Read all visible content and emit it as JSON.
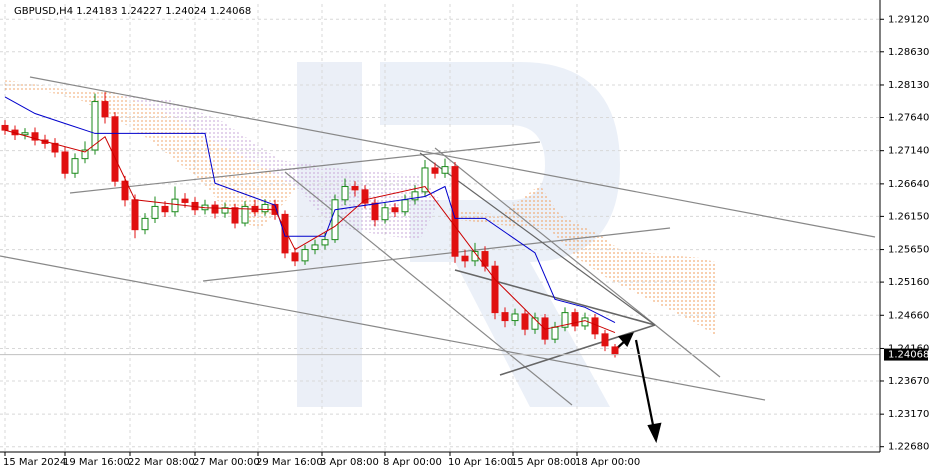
{
  "chart_data": {
    "type": "candlestick",
    "title": "GBPUSD,H4  1.24183 1.24227 1.24024 1.24068",
    "up_color": "#1a8a1a",
    "down_color": "#e01010",
    "grid": true,
    "xlim": [
      -0.5,
      87.5
    ],
    "ylim": [
      1.226,
      1.2935
    ],
    "xticks": [
      {
        "value": 0,
        "label": "15 Mar 2024"
      },
      {
        "value": 6,
        "label": "19 Mar 16:00"
      },
      {
        "value": 12.5,
        "label": "22 Mar 08:00"
      },
      {
        "value": 19,
        "label": "27 Mar 00:00"
      },
      {
        "value": 25.3,
        "label": "29 Mar 16:00"
      },
      {
        "value": 31.7,
        "label": "3 Apr 08:00"
      },
      {
        "value": 38,
        "label": "8 Apr 00:00"
      },
      {
        "value": 44.5,
        "label": "10 Apr 16:00"
      },
      {
        "value": 50.8,
        "label": "15 Apr 08:00"
      },
      {
        "value": 57.2,
        "label": "18 Apr 00:00"
      }
    ],
    "yticks": [
      {
        "value": 1.2912,
        "label": "1.29120"
      },
      {
        "value": 1.2863,
        "label": "1.28630"
      },
      {
        "value": 1.2813,
        "label": "1.28130"
      },
      {
        "value": 1.2764,
        "label": "1.27640"
      },
      {
        "value": 1.2714,
        "label": "1.27140"
      },
      {
        "value": 1.2664,
        "label": "1.26640"
      },
      {
        "value": 1.2615,
        "label": "1.26150"
      },
      {
        "value": 1.2565,
        "label": "1.25650"
      },
      {
        "value": 1.2516,
        "label": "1.25160"
      },
      {
        "value": 1.2466,
        "label": "1.24660"
      },
      {
        "value": 1.2416,
        "label": "1.24160"
      },
      {
        "value": 1.2367,
        "label": "1.23670"
      },
      {
        "value": 1.2317,
        "label": "1.23170"
      },
      {
        "value": 1.2268,
        "label": "1.22680"
      }
    ],
    "last_price": {
      "value": 1.24068,
      "label": "1.24068"
    },
    "open": [
      1.2752,
      1.2745,
      1.2738,
      1.2741,
      1.273,
      1.2725,
      1.2712,
      1.268,
      1.2702,
      1.2715,
      1.2788,
      1.2765,
      1.2668,
      1.264,
      1.2595,
      1.2612,
      1.263,
      1.2622,
      1.2641,
      1.2636,
      1.2625,
      1.2632,
      1.262,
      1.2628,
      1.2605,
      1.263,
      1.2622,
      1.2633,
      1.2618,
      1.256,
      1.2548,
      1.2565,
      1.2572,
      1.258,
      1.264,
      1.266,
      1.2655,
      1.2635,
      1.261,
      1.2628,
      1.2622,
      1.264,
      1.2652,
      1.2688,
      1.268,
      1.269,
      1.2555,
      1.2548,
      1.2562,
      1.254,
      1.247,
      1.2458,
      1.2468,
      1.2445,
      1.2462,
      1.243,
      1.2448,
      1.247,
      1.245,
      1.2462,
      1.2438,
      1.24183
    ],
    "high": [
      1.276,
      1.2752,
      1.2748,
      1.2749,
      1.2738,
      1.2733,
      1.272,
      1.271,
      1.2728,
      1.28,
      1.2802,
      1.2772,
      1.2676,
      1.2648,
      1.262,
      1.2645,
      1.2638,
      1.266,
      1.265,
      1.2644,
      1.264,
      1.2638,
      1.2636,
      1.2634,
      1.2638,
      1.264,
      1.2641,
      1.264,
      1.2624,
      1.2568,
      1.2572,
      1.258,
      1.259,
      1.2648,
      1.2672,
      1.2668,
      1.2662,
      1.2642,
      1.2636,
      1.2635,
      1.2648,
      1.2662,
      1.27,
      1.2696,
      1.2702,
      1.2697,
      1.2565,
      1.2575,
      1.257,
      1.2548,
      1.2478,
      1.2476,
      1.2475,
      1.247,
      1.2468,
      1.2456,
      1.2478,
      1.2476,
      1.247,
      1.2468,
      1.2444,
      1.24227
    ],
    "low": [
      1.2738,
      1.273,
      1.2731,
      1.2722,
      1.2717,
      1.2704,
      1.2672,
      1.2673,
      1.2695,
      1.2708,
      1.2755,
      1.266,
      1.263,
      1.2582,
      1.2588,
      1.2605,
      1.2614,
      1.2615,
      1.2628,
      1.2617,
      1.2618,
      1.2612,
      1.2613,
      1.2597,
      1.26,
      1.2615,
      1.2616,
      1.261,
      1.2552,
      1.254,
      1.2542,
      1.2558,
      1.2565,
      1.2575,
      1.2632,
      1.2645,
      1.2627,
      1.26,
      1.2604,
      1.2614,
      1.2616,
      1.2633,
      1.2645,
      1.2672,
      1.2673,
      1.2545,
      1.2538,
      1.254,
      1.2532,
      1.246,
      1.2448,
      1.245,
      1.2436,
      1.2438,
      1.2422,
      1.2424,
      1.2442,
      1.2442,
      1.2444,
      1.243,
      1.2412,
      1.24024
    ],
    "close": [
      1.2745,
      1.2738,
      1.2741,
      1.273,
      1.2725,
      1.2712,
      1.268,
      1.2702,
      1.2715,
      1.2788,
      1.2765,
      1.2668,
      1.264,
      1.2595,
      1.2612,
      1.263,
      1.2622,
      1.2641,
      1.2636,
      1.2625,
      1.2632,
      1.262,
      1.2628,
      1.2605,
      1.263,
      1.2622,
      1.2633,
      1.2618,
      1.256,
      1.2548,
      1.2565,
      1.2572,
      1.258,
      1.264,
      1.266,
      1.2655,
      1.2635,
      1.261,
      1.2628,
      1.2622,
      1.264,
      1.2652,
      1.2688,
      1.268,
      1.269,
      1.2555,
      1.2548,
      1.2562,
      1.254,
      1.247,
      1.2458,
      1.2468,
      1.2445,
      1.2462,
      1.243,
      1.2448,
      1.247,
      1.245,
      1.2462,
      1.2438,
      1.242,
      1.24068
    ],
    "series": [
      {
        "color": "#0000cc",
        "x": [
          0,
          3,
          6,
          9,
          20,
          21,
          27,
          28,
          32,
          33,
          42,
          44,
          45,
          48,
          53,
          55,
          58,
          61
        ],
        "values": [
          1.2795,
          1.277,
          1.2755,
          1.274,
          1.274,
          1.2665,
          1.2632,
          1.2585,
          1.2585,
          1.2625,
          1.2645,
          1.266,
          1.2612,
          1.2612,
          1.256,
          1.249,
          1.2478,
          1.2455
        ]
      },
      {
        "color": "#cc0000",
        "x": [
          0,
          4,
          8,
          10,
          13,
          20,
          27,
          29,
          33,
          36,
          42,
          45,
          49,
          54,
          58,
          61
        ],
        "values": [
          1.2745,
          1.2728,
          1.2712,
          1.2735,
          1.264,
          1.2628,
          1.2625,
          1.2565,
          1.26,
          1.264,
          1.266,
          1.26,
          1.252,
          1.2445,
          1.2458,
          1.244
        ]
      }
    ]
  }
}
